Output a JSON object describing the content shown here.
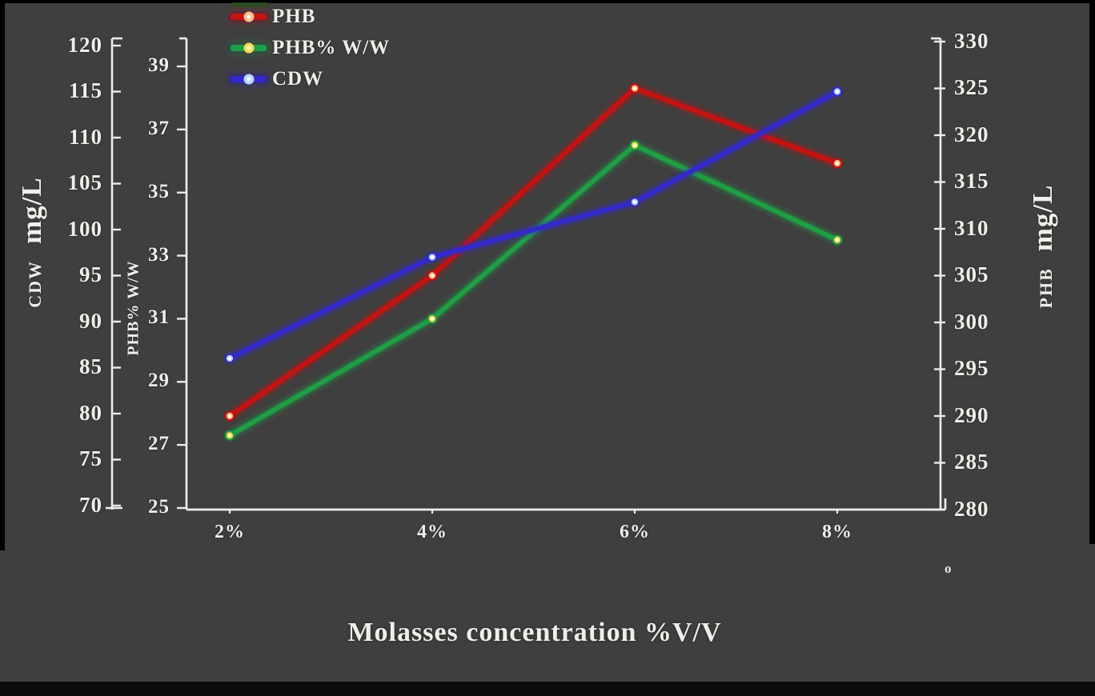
{
  "chart_data": {
    "type": "line",
    "title": "",
    "xlabel": "Molasses concentration %V/V",
    "x_categories": [
      "2%",
      "4%",
      "6%",
      "8%"
    ],
    "grid": false,
    "legend": {
      "position": "top-left",
      "items": [
        "PHB",
        "PHB% W/W",
        "CDW"
      ]
    },
    "series": [
      {
        "name": "PHB",
        "axis": "phb",
        "color": "#c41311",
        "marker_color": "#ffbe85",
        "values": [
          290,
          305,
          325,
          317
        ]
      },
      {
        "name": "PHB% W/W",
        "axis": "phb_pct",
        "color": "#1f9f45",
        "marker_color": "#ffd94e",
        "values": [
          27.3,
          31,
          36.5,
          33.5
        ]
      },
      {
        "name": "CDW",
        "axis": "cdw",
        "color": "#3329cb",
        "marker_color": "#b9d8ff",
        "values": [
          86,
          97,
          103,
          115
        ]
      }
    ],
    "axes": {
      "cdw": {
        "position": "left-outer",
        "name_label": "CDW",
        "unit_label": "mg/L",
        "min": 70,
        "max": 120,
        "tick_step": 5,
        "ticks": [
          120,
          115,
          110,
          105,
          100,
          95,
          90,
          85,
          80,
          75,
          70
        ]
      },
      "phb_pct": {
        "position": "left-inner",
        "name_label": "PHB% W/W",
        "min": 25,
        "max": 39,
        "tick_step": 2,
        "ticks": [
          39,
          37,
          35,
          33,
          31,
          29,
          27,
          25
        ]
      },
      "phb": {
        "position": "right",
        "name_label": "PHB",
        "unit_label": "mg/L",
        "min": 280,
        "max": 330,
        "tick_step": 5,
        "ticks": [
          330,
          325,
          320,
          315,
          310,
          305,
          300,
          295,
          290,
          285,
          280
        ]
      }
    }
  },
  "annotations": {
    "stray_glyph": "o"
  },
  "colors": {
    "background": "#3f3f3f",
    "frame": "#000000",
    "axis_line": "#f0ede8",
    "text": "#f1eee9"
  }
}
